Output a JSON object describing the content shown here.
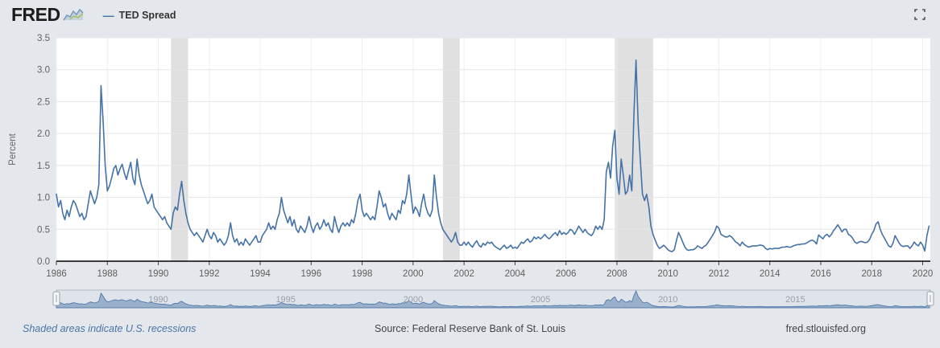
{
  "header": {
    "brand": "FRED",
    "legend_label": "TED Spread"
  },
  "icons": {
    "brand_mark": "sparkline-icon",
    "top_right": "fullscreen-expand-icon"
  },
  "colors": {
    "background": "#e4e7eb",
    "plot_bg": "#ffffff",
    "grid": "#e6e6e6",
    "grid_v": "#efefef",
    "recession": "#e0e0e0",
    "line": "#4572a7",
    "axis": "#000000",
    "nav_bg": "#dfe3ea",
    "nav_border": "#aeb8c2",
    "nav_fill": "rgba(69,114,167,0.45)"
  },
  "footer": {
    "left": "Shaded areas indicate U.S. recessions",
    "center": "Source: Federal Reserve Bank of St. Louis",
    "right": "fred.stlouisfed.org"
  },
  "chart_data": {
    "type": "line",
    "title": "TED Spread",
    "series_name": "TED Spread",
    "ylabel": "Percent",
    "ylim": [
      0.0,
      3.5
    ],
    "yticks": [
      0.0,
      0.5,
      1.0,
      1.5,
      2.0,
      2.5,
      3.0,
      3.5
    ],
    "xlim": [
      1986,
      2020.3
    ],
    "xticks": [
      1986,
      1988,
      1990,
      1992,
      1994,
      1996,
      1998,
      2000,
      2002,
      2004,
      2006,
      2008,
      2010,
      2012,
      2014,
      2016,
      2018,
      2020
    ],
    "x_start_year": 1986,
    "points_per_year": 12,
    "grid": "on",
    "legend_position": "top-left",
    "recessions": [
      [
        1990.5,
        1991.17
      ],
      [
        2001.17,
        2001.83
      ],
      [
        2007.92,
        2009.42
      ]
    ],
    "navigator_ticks": [
      1990,
      1995,
      2000,
      2005,
      2010,
      2015
    ],
    "values": [
      1.05,
      0.85,
      0.95,
      0.75,
      0.65,
      0.8,
      0.7,
      0.85,
      0.95,
      0.9,
      0.8,
      0.7,
      0.75,
      0.65,
      0.7,
      0.9,
      1.1,
      1.0,
      0.9,
      1.0,
      1.2,
      2.75,
      2.2,
      1.5,
      1.1,
      1.18,
      1.3,
      1.45,
      1.5,
      1.35,
      1.45,
      1.52,
      1.38,
      1.28,
      1.42,
      1.55,
      1.3,
      1.2,
      1.6,
      1.35,
      1.2,
      1.1,
      1.0,
      0.9,
      0.95,
      1.05,
      0.85,
      0.8,
      0.75,
      0.7,
      0.65,
      0.7,
      0.6,
      0.55,
      0.5,
      0.75,
      0.85,
      0.8,
      1.05,
      1.25,
      0.95,
      0.75,
      0.6,
      0.5,
      0.45,
      0.4,
      0.45,
      0.4,
      0.35,
      0.3,
      0.4,
      0.5,
      0.4,
      0.35,
      0.45,
      0.4,
      0.3,
      0.35,
      0.3,
      0.25,
      0.3,
      0.4,
      0.6,
      0.4,
      0.3,
      0.35,
      0.25,
      0.3,
      0.25,
      0.35,
      0.3,
      0.25,
      0.3,
      0.35,
      0.4,
      0.3,
      0.3,
      0.4,
      0.45,
      0.5,
      0.6,
      0.5,
      0.55,
      0.5,
      0.65,
      0.75,
      1.0,
      0.8,
      0.7,
      0.6,
      0.7,
      0.55,
      0.65,
      0.5,
      0.45,
      0.55,
      0.5,
      0.45,
      0.55,
      0.7,
      0.55,
      0.45,
      0.55,
      0.6,
      0.5,
      0.55,
      0.65,
      0.55,
      0.6,
      0.5,
      0.45,
      0.7,
      0.55,
      0.45,
      0.55,
      0.6,
      0.55,
      0.6,
      0.55,
      0.65,
      0.6,
      0.75,
      0.95,
      1.05,
      0.8,
      0.7,
      0.75,
      0.7,
      0.65,
      0.7,
      0.65,
      0.85,
      1.1,
      1.0,
      0.85,
      0.9,
      0.75,
      0.65,
      0.75,
      0.7,
      0.65,
      0.8,
      0.75,
      0.95,
      0.9,
      1.05,
      1.35,
      1.05,
      0.75,
      0.85,
      0.8,
      0.7,
      0.9,
      1.05,
      0.85,
      0.75,
      0.7,
      0.8,
      1.35,
      1.0,
      0.75,
      0.6,
      0.5,
      0.45,
      0.4,
      0.35,
      0.3,
      0.35,
      0.45,
      0.3,
      0.25,
      0.25,
      0.3,
      0.25,
      0.3,
      0.25,
      0.22,
      0.28,
      0.32,
      0.25,
      0.22,
      0.28,
      0.25,
      0.3,
      0.28,
      0.3,
      0.25,
      0.22,
      0.2,
      0.18,
      0.22,
      0.25,
      0.2,
      0.22,
      0.25,
      0.2,
      0.22,
      0.2,
      0.25,
      0.3,
      0.28,
      0.32,
      0.35,
      0.3,
      0.32,
      0.38,
      0.35,
      0.38,
      0.35,
      0.38,
      0.42,
      0.38,
      0.35,
      0.38,
      0.42,
      0.45,
      0.4,
      0.48,
      0.42,
      0.45,
      0.42,
      0.45,
      0.5,
      0.48,
      0.42,
      0.48,
      0.55,
      0.5,
      0.45,
      0.5,
      0.45,
      0.42,
      0.4,
      0.45,
      0.55,
      0.5,
      0.55,
      0.5,
      0.65,
      1.4,
      1.55,
      1.3,
      1.8,
      2.05,
      1.3,
      1.05,
      1.6,
      1.35,
      1.05,
      1.1,
      1.35,
      1.1,
      2.3,
      3.15,
      2.15,
      1.6,
      1.05,
      0.95,
      1.05,
      0.85,
      0.55,
      0.42,
      0.33,
      0.25,
      0.2,
      0.22,
      0.25,
      0.22,
      0.18,
      0.16,
      0.15,
      0.18,
      0.32,
      0.45,
      0.38,
      0.3,
      0.22,
      0.18,
      0.17,
      0.18,
      0.18,
      0.2,
      0.24,
      0.22,
      0.2,
      0.23,
      0.25,
      0.3,
      0.35,
      0.4,
      0.46,
      0.55,
      0.52,
      0.42,
      0.4,
      0.38,
      0.38,
      0.4,
      0.38,
      0.34,
      0.3,
      0.28,
      0.24,
      0.3,
      0.26,
      0.24,
      0.22,
      0.23,
      0.24,
      0.24,
      0.24,
      0.25,
      0.25,
      0.24,
      0.2,
      0.18,
      0.2,
      0.19,
      0.2,
      0.2,
      0.2,
      0.21,
      0.22,
      0.22,
      0.23,
      0.22,
      0.22,
      0.24,
      0.25,
      0.26,
      0.26,
      0.27,
      0.27,
      0.28,
      0.3,
      0.32,
      0.33,
      0.31,
      0.27,
      0.41,
      0.38,
      0.35,
      0.4,
      0.42,
      0.38,
      0.42,
      0.48,
      0.52,
      0.57,
      0.52,
      0.46,
      0.5,
      0.5,
      0.42,
      0.4,
      0.36,
      0.3,
      0.28,
      0.3,
      0.31,
      0.3,
      0.29,
      0.3,
      0.34,
      0.42,
      0.48,
      0.58,
      0.62,
      0.5,
      0.42,
      0.36,
      0.3,
      0.24,
      0.22,
      0.28,
      0.4,
      0.34,
      0.28,
      0.24,
      0.23,
      0.24,
      0.24,
      0.2,
      0.24,
      0.3,
      0.26,
      0.24,
      0.3,
      0.25,
      0.16,
      0.4,
      0.55
    ]
  }
}
